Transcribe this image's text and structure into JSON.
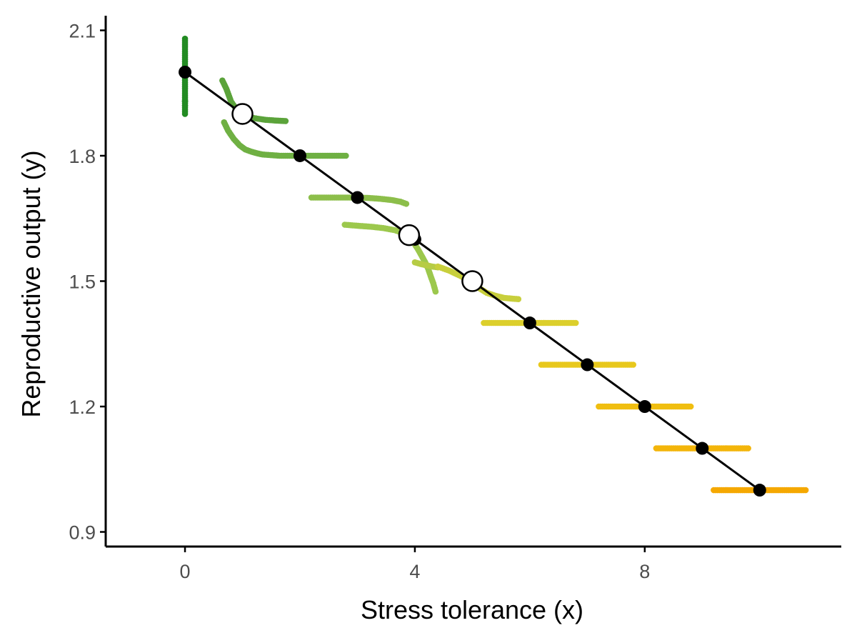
{
  "chart_data": {
    "type": "scatter",
    "title": "",
    "xlabel": "Stress tolerance (x)",
    "ylabel": "Reproductive output (y)",
    "xlim": [
      -1.38,
      11.42
    ],
    "ylim": [
      0.865,
      2.135
    ],
    "xticks": [
      0,
      4,
      8
    ],
    "yticks": [
      0.9,
      1.2,
      1.5,
      1.8,
      2.1
    ],
    "ytick_labels": [
      "0.9",
      "1.2",
      "1.5",
      "1.8",
      "2.1"
    ],
    "grid": false,
    "legend": "none",
    "trade_off_line": {
      "x": [
        0,
        10
      ],
      "y": [
        2.0,
        1.0
      ],
      "color": "#000000"
    },
    "filled_points": {
      "color": "#000000",
      "x": [
        0,
        2,
        3,
        4,
        6,
        7,
        8,
        9,
        10
      ],
      "y": [
        2.0,
        1.8,
        1.7,
        1.6,
        1.4,
        1.3,
        1.2,
        1.1,
        1.0
      ]
    },
    "open_points": {
      "fill": "#ffffff",
      "stroke": "#000000",
      "x": [
        1.0,
        3.9,
        5.0
      ],
      "y": [
        1.9,
        1.61,
        1.5
      ]
    },
    "trajectories": [
      {
        "color": "#228B22",
        "x": [
          0,
          0,
          0,
          0,
          0,
          0,
          0,
          0,
          0,
          0,
          0,
          0,
          0,
          0,
          0,
          0
        ],
        "y": [
          2.08,
          2.06,
          2.04,
          2.02,
          2.0,
          1.98,
          1.97,
          1.96,
          1.95,
          1.94,
          1.93,
          1.93,
          1.93,
          1.92,
          1.92,
          1.9
        ]
      },
      {
        "color": "#5BA33A",
        "x": [
          0.65,
          0.72,
          0.8,
          0.9,
          1.0,
          1.1,
          1.2,
          1.3,
          1.4,
          1.5,
          1.6,
          1.75
        ],
        "y": [
          1.98,
          1.96,
          1.93,
          1.91,
          1.9,
          1.895,
          1.89,
          1.888,
          1.886,
          1.885,
          1.884,
          1.883
        ]
      },
      {
        "color": "#6FB043",
        "x": [
          0.68,
          0.75,
          0.85,
          0.95,
          1.05,
          1.15,
          1.25,
          1.35,
          1.45,
          1.55,
          1.65,
          1.75,
          1.85,
          2.0,
          2.15,
          2.3,
          2.45,
          2.6,
          2.8
        ],
        "y": [
          1.88,
          1.86,
          1.84,
          1.825,
          1.815,
          1.81,
          1.806,
          1.803,
          1.802,
          1.801,
          1.8,
          1.8,
          1.8,
          1.8,
          1.8,
          1.8,
          1.8,
          1.8,
          1.8
        ]
      },
      {
        "color": "#8CBE4A",
        "x": [
          2.2,
          2.4,
          2.6,
          2.8,
          3.0,
          3.2,
          3.4,
          3.6,
          3.75,
          3.85
        ],
        "y": [
          1.7,
          1.7,
          1.7,
          1.7,
          1.7,
          1.699,
          1.697,
          1.694,
          1.69,
          1.685
        ]
      },
      {
        "color": "#9CC84D",
        "x": [
          2.78,
          3.05,
          3.25,
          3.45,
          3.65,
          3.8,
          3.9,
          3.98,
          4.05,
          4.12,
          4.18,
          4.23,
          4.28,
          4.32,
          4.36
        ],
        "y": [
          1.635,
          1.632,
          1.63,
          1.627,
          1.622,
          1.615,
          1.605,
          1.592,
          1.577,
          1.56,
          1.545,
          1.53,
          1.51,
          1.495,
          1.475
        ]
      },
      {
        "color": "#B6CC45",
        "x": [
          4.0,
          4.1,
          4.2,
          4.3,
          4.4
        ],
        "y": [
          1.545,
          1.541,
          1.538,
          1.535,
          1.533
        ]
      },
      {
        "color": "#C8CF3C",
        "x": [
          4.4,
          4.6,
          4.8,
          4.95,
          5.1,
          5.25,
          5.4,
          5.55,
          5.7,
          5.8
        ],
        "y": [
          1.535,
          1.525,
          1.512,
          1.5,
          1.485,
          1.472,
          1.465,
          1.46,
          1.458,
          1.457
        ]
      },
      {
        "color": "#DCCF2C",
        "x": [
          5.2,
          5.4,
          5.6,
          5.8,
          6.0,
          6.2,
          6.4,
          6.6,
          6.8
        ],
        "y": [
          1.4,
          1.4,
          1.4,
          1.4,
          1.4,
          1.4,
          1.4,
          1.4,
          1.4
        ]
      },
      {
        "color": "#E8C81C",
        "x": [
          6.2,
          6.4,
          6.6,
          6.8,
          7.0,
          7.2,
          7.4,
          7.6,
          7.8
        ],
        "y": [
          1.3,
          1.3,
          1.3,
          1.3,
          1.3,
          1.3,
          1.3,
          1.3,
          1.3
        ]
      },
      {
        "color": "#F0BE10",
        "x": [
          7.2,
          7.4,
          7.6,
          7.8,
          8.0,
          8.2,
          8.4,
          8.6,
          8.8
        ],
        "y": [
          1.2,
          1.2,
          1.2,
          1.2,
          1.2,
          1.2,
          1.2,
          1.2,
          1.2
        ]
      },
      {
        "color": "#F3B50A",
        "x": [
          8.2,
          8.4,
          8.6,
          8.8,
          9.0,
          9.2,
          9.4,
          9.6,
          9.8
        ],
        "y": [
          1.1,
          1.1,
          1.1,
          1.1,
          1.1,
          1.1,
          1.1,
          1.1,
          1.1
        ]
      },
      {
        "color": "#F5A800",
        "x": [
          9.2,
          9.4,
          9.6,
          9.8,
          10.0,
          10.2,
          10.4,
          10.6,
          10.8
        ],
        "y": [
          1.0,
          1.0,
          1.0,
          1.0,
          1.0,
          1.0,
          1.0,
          1.0,
          1.0
        ]
      }
    ]
  }
}
